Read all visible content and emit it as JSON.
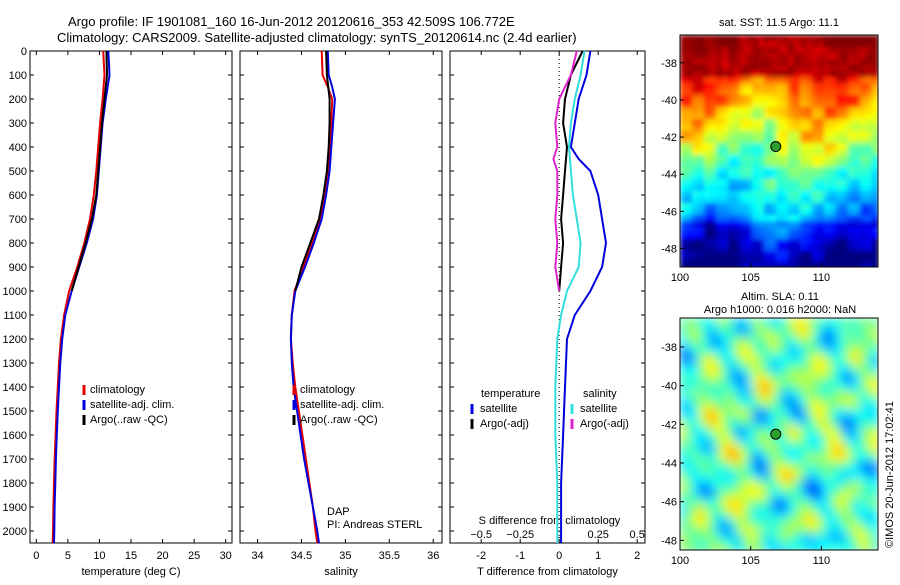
{
  "header": {
    "line1": "Argo profile: IF 1901081_160 16-Jun-2012 20120616_353 42.509S 106.772E",
    "line2": "Climatology: CARS2009. Satellite-adjusted climatology: synTS_20120614.nc (2.4d earlier)"
  },
  "colors": {
    "climatology": "#e00000",
    "satellite": "#0000dd",
    "argo": "#000000",
    "salinity_sat": "#33dddd",
    "salinity_argo": "#dd22cc"
  },
  "chart_data": [
    {
      "type": "line",
      "id": "temperature",
      "xlabel": "temperature (deg C)",
      "ylabel": "",
      "xlim": [
        -1,
        31
      ],
      "ylim": [
        2050,
        0
      ],
      "xticks": [
        0,
        5,
        10,
        15,
        20,
        25,
        30
      ],
      "yticks": [
        0,
        100,
        200,
        300,
        400,
        500,
        600,
        700,
        800,
        900,
        1000,
        1100,
        1200,
        1300,
        1400,
        1500,
        1600,
        1700,
        1800,
        1900,
        2000
      ],
      "legend": {
        "position": "lower-right",
        "entries": [
          "climatology",
          "satellite-adj. clim.",
          "Argo(..raw -QC)"
        ]
      },
      "series": [
        {
          "name": "climatology",
          "color": "#e00000",
          "points": [
            [
              10.6,
              0
            ],
            [
              10.8,
              100
            ],
            [
              10.5,
              200
            ],
            [
              10.1,
              300
            ],
            [
              9.8,
              400
            ],
            [
              9.5,
              500
            ],
            [
              9.1,
              600
            ],
            [
              8.5,
              700
            ],
            [
              7.6,
              800
            ],
            [
              6.5,
              900
            ],
            [
              5.2,
              1000
            ],
            [
              4.4,
              1100
            ],
            [
              3.9,
              1200
            ],
            [
              3.6,
              1300
            ],
            [
              3.4,
              1400
            ],
            [
              3.2,
              1500
            ],
            [
              3.05,
              1600
            ],
            [
              2.9,
              1700
            ],
            [
              2.8,
              1800
            ],
            [
              2.7,
              1900
            ],
            [
              2.65,
              2000
            ],
            [
              2.6,
              2050
            ]
          ]
        },
        {
          "name": "satellite-adj. clim.",
          "color": "#0000dd",
          "points": [
            [
              11.4,
              0
            ],
            [
              11.6,
              100
            ],
            [
              11.0,
              200
            ],
            [
              10.5,
              300
            ],
            [
              10.2,
              400
            ],
            [
              9.9,
              500
            ],
            [
              9.6,
              600
            ],
            [
              9.0,
              700
            ],
            [
              8.0,
              800
            ],
            [
              6.8,
              900
            ],
            [
              5.6,
              1000
            ],
            [
              4.6,
              1100
            ],
            [
              4.1,
              1200
            ],
            [
              3.8,
              1300
            ],
            [
              3.6,
              1400
            ],
            [
              3.4,
              1500
            ],
            [
              3.25,
              1600
            ],
            [
              3.1,
              1700
            ],
            [
              3.0,
              1800
            ],
            [
              2.9,
              1900
            ],
            [
              2.85,
              2000
            ],
            [
              2.8,
              2050
            ]
          ]
        },
        {
          "name": "Argo(..raw -QC)",
          "color": "#000000",
          "points": [
            [
              11.1,
              0
            ],
            [
              11.2,
              100
            ],
            [
              10.8,
              200
            ],
            [
              10.4,
              300
            ],
            [
              10.1,
              400
            ],
            [
              9.8,
              500
            ],
            [
              9.5,
              600
            ],
            [
              8.8,
              700
            ],
            [
              7.8,
              800
            ],
            [
              6.7,
              900
            ],
            [
              5.6,
              1000
            ]
          ]
        }
      ]
    },
    {
      "type": "line",
      "id": "salinity",
      "xlabel": "salinity",
      "ylabel": "",
      "xlim": [
        33.8,
        36.1
      ],
      "ylim": [
        2050,
        0
      ],
      "xticks": [
        34,
        34.5,
        35,
        35.5,
        36
      ],
      "xticklabels": [
        "34",
        "34.5",
        "35",
        "35.5",
        "36"
      ],
      "legend": {
        "position": "lower-right",
        "entries": [
          "climatology",
          "satellite-adj. clim.",
          "Argo(..raw -QC)"
        ]
      },
      "annotation": [
        "DAP",
        "PI: Andreas STERL"
      ],
      "series": [
        {
          "name": "climatology",
          "color": "#e00000",
          "points": [
            [
              34.73,
              0
            ],
            [
              34.74,
              100
            ],
            [
              34.8,
              150
            ],
            [
              34.85,
              200
            ],
            [
              34.84,
              300
            ],
            [
              34.82,
              400
            ],
            [
              34.8,
              500
            ],
            [
              34.76,
              600
            ],
            [
              34.71,
              700
            ],
            [
              34.62,
              800
            ],
            [
              34.52,
              900
            ],
            [
              34.42,
              1000
            ],
            [
              34.39,
              1100
            ],
            [
              34.38,
              1200
            ],
            [
              34.4,
              1300
            ],
            [
              34.43,
              1400
            ],
            [
              34.47,
              1500
            ],
            [
              34.51,
              1600
            ],
            [
              34.55,
              1700
            ],
            [
              34.59,
              1800
            ],
            [
              34.63,
              1900
            ],
            [
              34.66,
              2000
            ],
            [
              34.68,
              2050
            ]
          ]
        },
        {
          "name": "satellite-adj. clim.",
          "color": "#0000dd",
          "points": [
            [
              34.8,
              0
            ],
            [
              34.81,
              100
            ],
            [
              34.85,
              150
            ],
            [
              34.88,
              200
            ],
            [
              34.86,
              300
            ],
            [
              34.84,
              400
            ],
            [
              34.82,
              500
            ],
            [
              34.78,
              600
            ],
            [
              34.73,
              700
            ],
            [
              34.64,
              800
            ],
            [
              34.54,
              900
            ],
            [
              34.43,
              1000
            ],
            [
              34.39,
              1100
            ],
            [
              34.38,
              1200
            ],
            [
              34.39,
              1300
            ],
            [
              34.41,
              1400
            ],
            [
              34.45,
              1500
            ],
            [
              34.49,
              1600
            ],
            [
              34.53,
              1700
            ],
            [
              34.58,
              1800
            ],
            [
              34.63,
              1900
            ],
            [
              34.68,
              2000
            ],
            [
              34.7,
              2050
            ]
          ]
        },
        {
          "name": "Argo(..raw -QC)",
          "color": "#000000",
          "points": [
            [
              34.78,
              0
            ],
            [
              34.79,
              100
            ],
            [
              34.82,
              200
            ],
            [
              34.82,
              300
            ],
            [
              34.81,
              400
            ],
            [
              34.79,
              500
            ],
            [
              34.75,
              600
            ],
            [
              34.7,
              700
            ],
            [
              34.6,
              800
            ],
            [
              34.5,
              900
            ],
            [
              34.43,
              1000
            ]
          ]
        }
      ]
    },
    {
      "type": "line",
      "id": "difference",
      "xlabel": "T difference from climatology",
      "x2label": "S difference from climatology",
      "xlim": [
        -2.8,
        2.2
      ],
      "ylim": [
        2050,
        0
      ],
      "xticks": [
        -2,
        -1,
        0,
        1,
        2
      ],
      "x2ticks": [
        -0.5,
        -0.25,
        0,
        0.25,
        0.5
      ],
      "x2ticklabels": [
        "−0.5",
        "−0.25",
        "0",
        "0.25",
        "0.5"
      ],
      "legend": {
        "position": "lower-right",
        "headers": [
          "temperature",
          "salinity"
        ],
        "entries": [
          "satellite",
          "Argo(-adj)",
          "satellite",
          "Argo(-adj)"
        ]
      },
      "series": [
        {
          "name": "satellite",
          "group": "temperature",
          "color": "#0000dd",
          "points": [
            [
              0.8,
              0
            ],
            [
              0.7,
              100
            ],
            [
              0.5,
              200
            ],
            [
              0.4,
              300
            ],
            [
              0.3,
              400
            ],
            [
              0.5,
              450
            ],
            [
              0.8,
              500
            ],
            [
              1.0,
              600
            ],
            [
              1.1,
              700
            ],
            [
              1.2,
              800
            ],
            [
              1.1,
              900
            ],
            [
              0.8,
              1000
            ],
            [
              0.4,
              1100
            ],
            [
              0.2,
              1200
            ],
            [
              0.15,
              1400
            ],
            [
              0.1,
              1600
            ],
            [
              0.05,
              1800
            ],
            [
              0.05,
              2050
            ]
          ]
        },
        {
          "name": "Argo(-adj)",
          "group": "temperature",
          "color": "#000000",
          "points": [
            [
              0.6,
              0
            ],
            [
              0.3,
              100
            ],
            [
              0.15,
              200
            ],
            [
              0.1,
              300
            ],
            [
              0.2,
              400
            ],
            [
              0.15,
              500
            ],
            [
              0.1,
              600
            ],
            [
              0.05,
              700
            ],
            [
              0.1,
              800
            ],
            [
              0.05,
              900
            ],
            [
              0.0,
              1000
            ]
          ]
        },
        {
          "name": "satellite",
          "group": "salinity",
          "color": "#33dddd",
          "points": [
            [
              0.65,
              0
            ],
            [
              0.55,
              100
            ],
            [
              0.4,
              200
            ],
            [
              0.3,
              300
            ],
            [
              0.25,
              400
            ],
            [
              0.3,
              500
            ],
            [
              0.35,
              600
            ],
            [
              0.45,
              700
            ],
            [
              0.55,
              800
            ],
            [
              0.5,
              900
            ],
            [
              0.2,
              1000
            ],
            [
              0.05,
              1100
            ],
            [
              -0.05,
              1200
            ],
            [
              -0.1,
              1400
            ],
            [
              -0.1,
              1600
            ],
            [
              -0.05,
              1800
            ],
            [
              -0.05,
              2050
            ]
          ]
        },
        {
          "name": "Argo(-adj)",
          "group": "salinity",
          "color": "#dd22cc",
          "points": [
            [
              0.45,
              0
            ],
            [
              0.3,
              100
            ],
            [
              0.0,
              200
            ],
            [
              -0.1,
              300
            ],
            [
              -0.05,
              400
            ],
            [
              -0.15,
              450
            ],
            [
              -0.05,
              500
            ],
            [
              -0.05,
              600
            ],
            [
              -0.1,
              700
            ],
            [
              -0.05,
              800
            ],
            [
              -0.1,
              900
            ],
            [
              0.0,
              1000
            ]
          ]
        }
      ]
    }
  ],
  "maps": [
    {
      "id": "sst-map",
      "title": "sat. SST: 11.5 Argo: 11.1",
      "xlim": [
        100,
        114
      ],
      "ylim": [
        -49,
        -36.5
      ],
      "xticks": [
        100,
        105,
        110
      ],
      "yticks": [
        -38,
        -40,
        -42,
        -44,
        -46,
        -48
      ],
      "marker": {
        "lon": 106.772,
        "lat": -42.509
      }
    },
    {
      "id": "sla-map",
      "title": "Altim. SLA: 0.11",
      "subtitle": "Argo h1000: 0.016 h2000: NaN",
      "xlim": [
        100,
        114
      ],
      "ylim": [
        -48.5,
        -36.5
      ],
      "xticks": [
        100,
        105,
        110
      ],
      "yticks": [
        -38,
        -40,
        -42,
        -44,
        -46,
        -48
      ],
      "marker": {
        "lon": 106.772,
        "lat": -42.509
      }
    }
  ],
  "footer": {
    "credit": "©IMOS 20-Jun-2012 17:02:41"
  }
}
